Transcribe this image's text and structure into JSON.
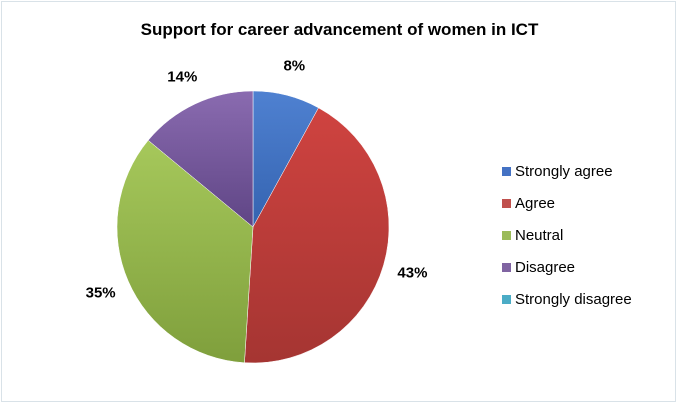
{
  "chart_data": {
    "type": "pie",
    "title": "Support for career advancement of women in ICT",
    "categories": [
      "Strongly agree",
      "Agree",
      "Neutral",
      "Disagree",
      "Strongly disagree"
    ],
    "values": [
      8,
      43,
      35,
      14,
      0
    ],
    "labels": [
      "8%",
      "43%",
      "35%",
      "14%",
      ""
    ],
    "colors": [
      "#4472c4",
      "#c0504d",
      "#9bbb59",
      "#8064a2",
      "#4bacc6"
    ],
    "legend_position": "right"
  }
}
